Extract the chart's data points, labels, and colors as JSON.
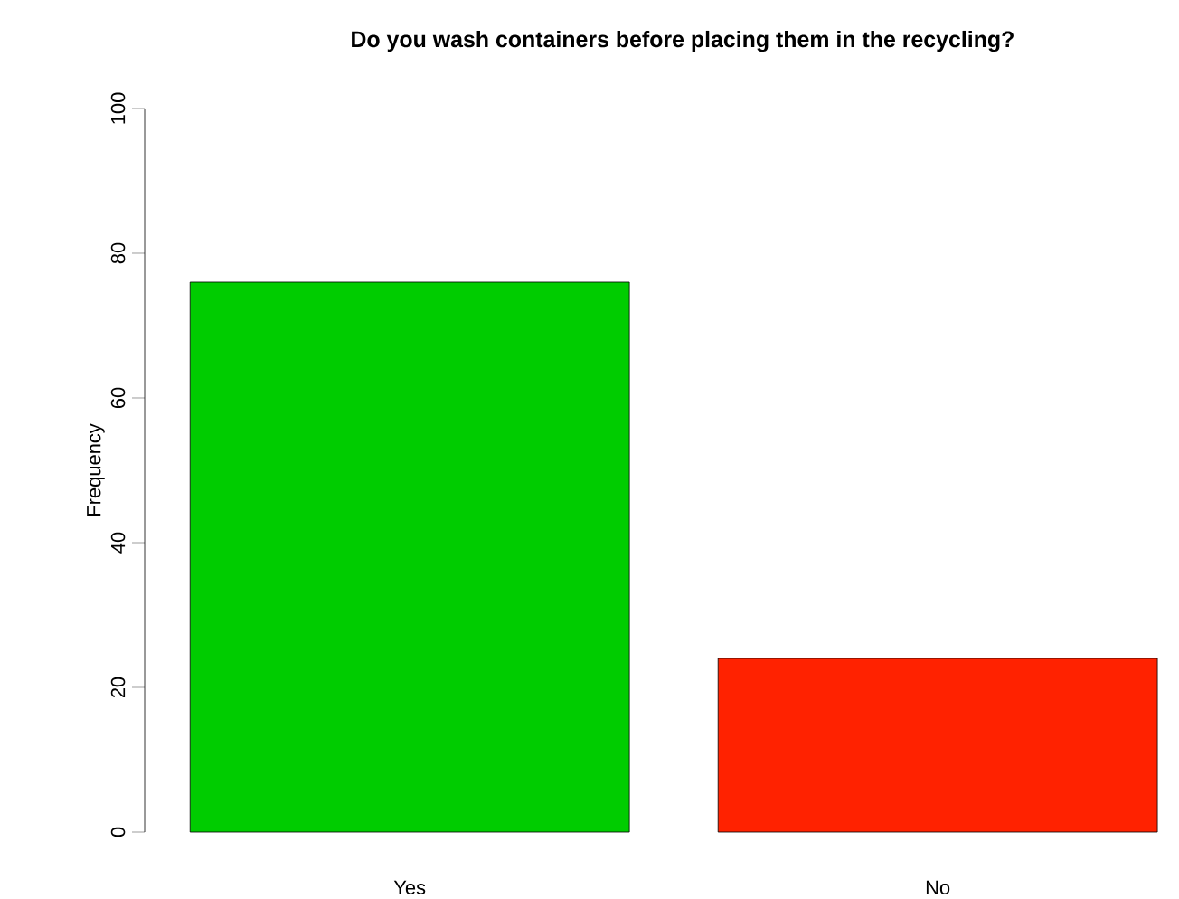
{
  "chart_data": {
    "type": "bar",
    "title": "Do you wash containers before placing them in the recycling?",
    "ylabel": "Frequency",
    "categories": [
      "Yes",
      "No"
    ],
    "values": [
      76,
      24
    ],
    "colors": [
      "#00cc00",
      "#ff2200"
    ],
    "ylim": [
      0,
      100
    ],
    "yticks": [
      0,
      20,
      40,
      60,
      80,
      100
    ]
  }
}
